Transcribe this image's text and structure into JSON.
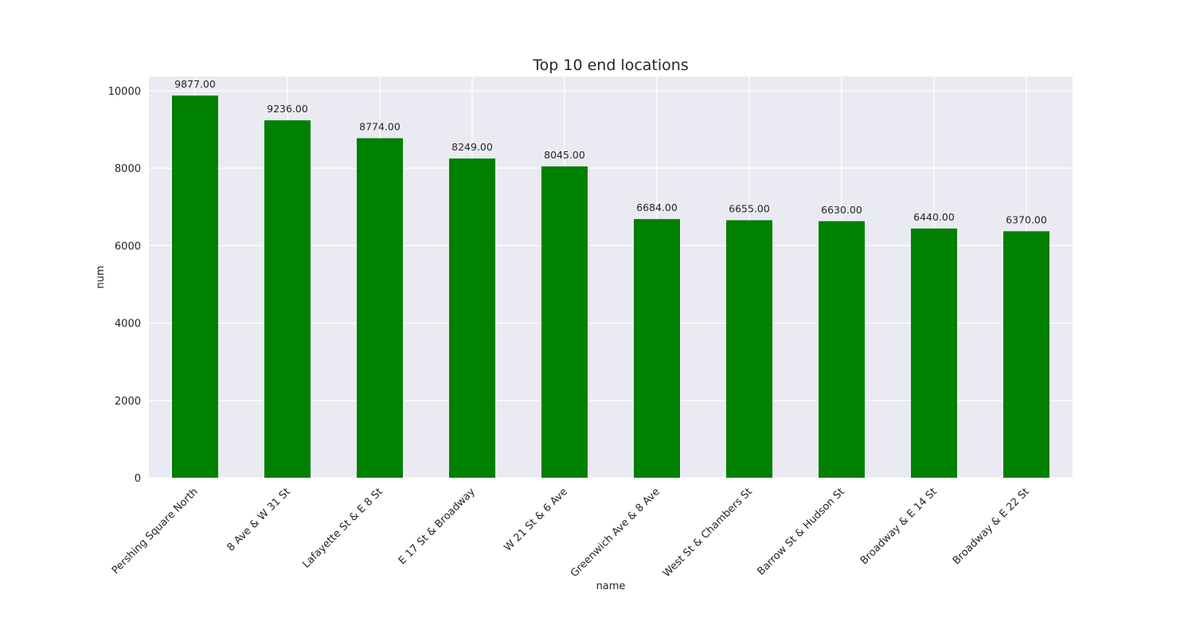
{
  "chart_data": {
    "type": "bar",
    "title": "Top 10 end locations",
    "xlabel": "name",
    "ylabel": "num",
    "categories": [
      "Pershing Square North",
      "8 Ave & W 31 St",
      "Lafayette St & E 8 St",
      "E 17 St & Broadway",
      "W 21 St & 6 Ave",
      "Greenwich Ave & 8 Ave",
      "West St & Chambers St",
      "Barrow St & Hudson St",
      "Broadway & E 14 St",
      "Broadway & E 22 St"
    ],
    "values": [
      9877,
      9236,
      8774,
      8249,
      8045,
      6684,
      6655,
      6630,
      6440,
      6370
    ],
    "value_labels": [
      "9877.00",
      "9236.00",
      "8774.00",
      "8249.00",
      "8045.00",
      "6684.00",
      "6655.00",
      "6630.00",
      "6440.00",
      "6370.00"
    ],
    "ylim": [
      0,
      10370
    ],
    "yticks": [
      0,
      2000,
      4000,
      6000,
      8000,
      10000
    ],
    "bar_color": "#008000",
    "background_color": "#EAEAF2",
    "grid": true,
    "legend": false
  }
}
